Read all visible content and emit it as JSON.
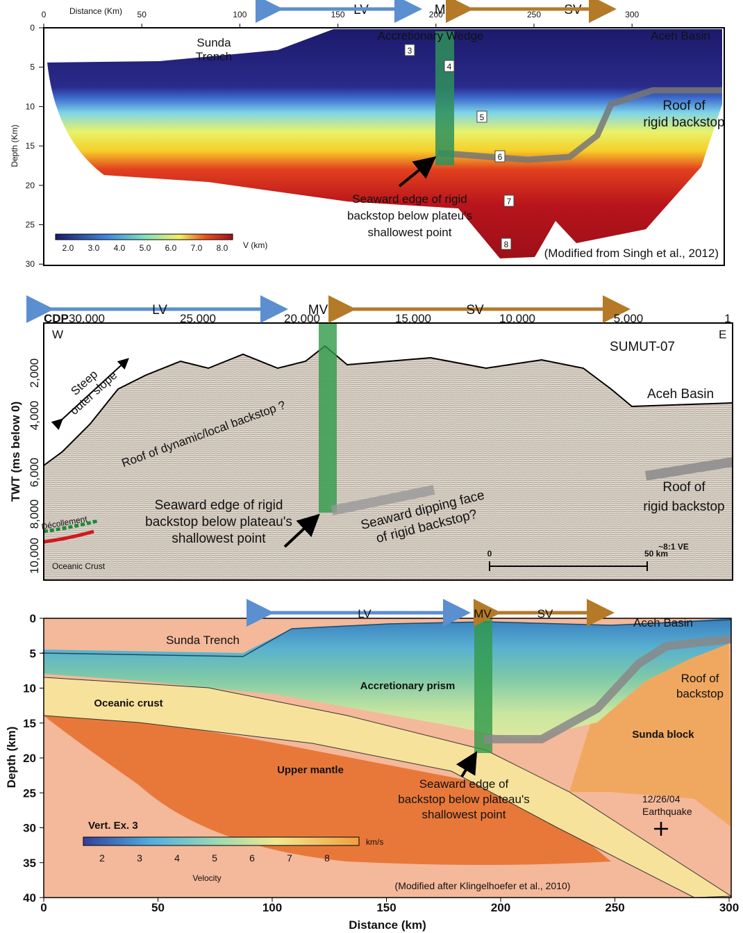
{
  "panels": [
    {
      "x_axis_title": "Distance (Km)",
      "x_ticks": [
        "0",
        "50",
        "100",
        "150",
        "200",
        "250",
        "300"
      ],
      "y_axis_title": "Depth (Km)",
      "y_ticks": [
        "0",
        "5",
        "10",
        "15",
        "20",
        "25",
        "30"
      ],
      "arrows": {
        "lv": "LV",
        "mv": "MV",
        "sv": "SV"
      },
      "labels": {
        "trench": [
          "Sunda",
          "Trench"
        ],
        "wedge": "Accretionary Wedge",
        "basin": "Aceh Basin",
        "roof": [
          "Roof of",
          "rigid backstop"
        ],
        "edge": [
          "Seaward edge of rigid",
          "backstop below plateu's",
          "shallowest point"
        ],
        "layers": [
          "3",
          "4",
          "5",
          "6",
          "7",
          "8"
        ]
      },
      "colorbar": {
        "ticks": [
          "2.0",
          "3.0",
          "4.0",
          "5.0",
          "6.0",
          "7.0",
          "8.0"
        ],
        "unit": "V (km)"
      },
      "credit": "(Modified from Singh et al., 2012)"
    },
    {
      "x_axis_title": "CDP",
      "x_ticks": [
        "30,000",
        "25,000",
        "20,000",
        "15,000",
        "10,000",
        "5,000",
        "1"
      ],
      "y_axis_title": "TWT (ms below 0)",
      "y_ticks": [
        "2,000",
        "4,000",
        "6,000",
        "8,000",
        "10,000"
      ],
      "arrows": {
        "lv": "LV",
        "mv": "MV",
        "sv": "SV"
      },
      "labels": {
        "west": "W",
        "east": "E",
        "profile": "SUMUT-07",
        "slope": [
          "Steep",
          "outer slope"
        ],
        "basin": "Aceh Basin",
        "dynamic": "Roof of dynamic/local backstop ?",
        "roof": [
          "Roof of",
          "rigid backstop"
        ],
        "edge": [
          "Seaward edge of rigid",
          "backstop below plateau's",
          "shallowest point"
        ],
        "face": [
          "Seaward dipping face",
          "of rigid backstop?"
        ],
        "decollement": "Décollement",
        "crust": "Oceanic Crust",
        "ve": "~8:1 VE",
        "scale_start": "0",
        "scale_end": "50 km"
      }
    },
    {
      "x_axis_title": "Distance (km)",
      "x_ticks": [
        "0",
        "50",
        "100",
        "150",
        "200",
        "250",
        "300"
      ],
      "y_axis_title": "Depth (km)",
      "y_ticks": [
        "0",
        "5",
        "10",
        "15",
        "20",
        "25",
        "30",
        "35",
        "40"
      ],
      "arrows": {
        "lv": "LV",
        "mv": "MV",
        "sv": "SV"
      },
      "labels": {
        "basin": "Aceh Basin",
        "trench": "Sunda Trench",
        "prism": "Accretionary prism",
        "crust": "Oceanic crust",
        "roof": [
          "Roof of",
          "backstop"
        ],
        "block": "Sunda block",
        "mantle": "Upper mantle",
        "edge": [
          "Seaward edge of",
          "backstop below plateau's",
          "shallowest point"
        ],
        "quake": [
          "12/26/04",
          "Earthquake"
        ],
        "vert": "Vert. Ex. 3"
      },
      "colorbar": {
        "ticks": [
          "2",
          "3",
          "4",
          "5",
          "6",
          "7",
          "8"
        ],
        "unit": "km/s",
        "title": "Velocity"
      },
      "credit": "(Modified after Klingelhoefer et al., 2010)"
    }
  ]
}
